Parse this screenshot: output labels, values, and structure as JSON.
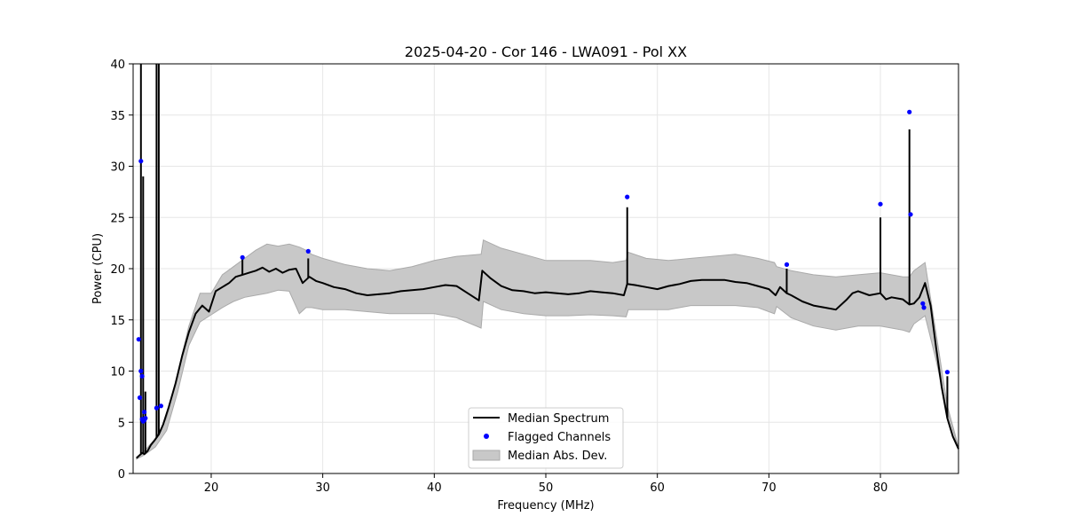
{
  "chart_data": {
    "type": "line",
    "title": "2025-04-20 - Cor 146 - LWA091 - Pol XX",
    "xlabel": "Frequency (MHz)",
    "ylabel": "Power (CPU)",
    "xlim": [
      13,
      87
    ],
    "ylim": [
      0,
      40
    ],
    "xticks": [
      20,
      30,
      40,
      50,
      60,
      70,
      80
    ],
    "yticks": [
      0,
      5,
      10,
      15,
      20,
      25,
      30,
      35,
      40
    ],
    "grid": true,
    "legend_position": "bottom-center",
    "series": [
      {
        "name": "Median Spectrum",
        "kind": "line",
        "color": "#000000",
        "x": [
          13.3,
          13.6,
          13.8,
          14.0,
          14.3,
          14.6,
          14.9,
          15.3,
          15.7,
          16.2,
          16.8,
          17.4,
          18.0,
          18.6,
          19.2,
          19.8,
          20.4,
          21.0,
          21.6,
          22.2,
          22.8,
          23.4,
          24.0,
          24.6,
          25.2,
          25.8,
          26.4,
          27.0,
          27.6,
          28.2,
          28.8,
          29.4,
          30.0,
          31.0,
          32.0,
          33.0,
          34.0,
          35.0,
          36.0,
          37.0,
          38.0,
          39.0,
          40.0,
          41.0,
          42.0,
          43.0,
          44.0,
          44.3,
          45.0,
          46.0,
          47.0,
          48.0,
          49.0,
          50.0,
          51.0,
          52.0,
          53.0,
          54.0,
          55.0,
          56.0,
          57.0,
          57.3,
          58.0,
          59.0,
          60.0,
          61.0,
          62.0,
          63.0,
          64.0,
          65.0,
          66.0,
          67.0,
          68.0,
          69.0,
          70.0,
          70.6,
          71.0,
          71.6,
          72.0,
          73.0,
          74.0,
          75.0,
          76.0,
          77.0,
          77.5,
          78.0,
          79.0,
          80.0,
          80.5,
          81.0,
          82.0,
          82.6,
          83.0,
          83.5,
          84.0,
          84.5,
          85.0,
          85.5,
          86.0,
          86.5,
          87.0
        ],
        "y": [
          1.5,
          1.8,
          2.0,
          1.9,
          2.2,
          2.8,
          3.2,
          3.8,
          4.8,
          6.5,
          8.8,
          11.5,
          13.8,
          15.6,
          16.4,
          15.8,
          17.8,
          18.2,
          18.6,
          19.2,
          19.4,
          19.6,
          19.8,
          20.1,
          19.7,
          20.0,
          19.6,
          19.9,
          20.0,
          18.6,
          19.2,
          18.8,
          18.6,
          18.2,
          18.0,
          17.6,
          17.4,
          17.5,
          17.6,
          17.8,
          17.9,
          18.0,
          18.2,
          18.4,
          18.3,
          17.6,
          16.9,
          19.8,
          19.1,
          18.3,
          17.9,
          17.8,
          17.6,
          17.7,
          17.6,
          17.5,
          17.6,
          17.8,
          17.7,
          17.6,
          17.4,
          18.5,
          18.4,
          18.2,
          18.0,
          18.3,
          18.5,
          18.8,
          18.9,
          18.9,
          18.9,
          18.7,
          18.6,
          18.3,
          18.0,
          17.4,
          18.2,
          17.6,
          17.4,
          16.8,
          16.4,
          16.2,
          16.0,
          17.0,
          17.6,
          17.8,
          17.4,
          17.6,
          17.0,
          17.2,
          17.0,
          16.5,
          16.6,
          17.2,
          18.6,
          16.4,
          12.2,
          8.4,
          5.4,
          3.6,
          2.4
        ]
      },
      {
        "name": "Flagged Channels",
        "kind": "scatter",
        "color": "#0000ff",
        "x": [
          13.5,
          13.6,
          13.7,
          13.7,
          13.8,
          13.8,
          13.9,
          14.0,
          14.0,
          14.1,
          15.1,
          15.5,
          22.8,
          28.7,
          57.3,
          71.6,
          80.0,
          82.6,
          82.7,
          83.8,
          83.9,
          86.0
        ],
        "y": [
          13.1,
          7.4,
          10.0,
          30.5,
          5.3,
          9.5,
          5.1,
          6.0,
          5.2,
          5.4,
          6.4,
          6.6,
          21.1,
          21.7,
          27.0,
          20.4,
          26.3,
          35.3,
          25.3,
          16.6,
          16.2,
          9.9
        ]
      },
      {
        "name": "Median Abs. Dev.",
        "kind": "band",
        "color": "#c8c8c8",
        "edge_color": "#aaaaaa",
        "x": [
          13.3,
          14.0,
          15.0,
          16.0,
          17.0,
          18.0,
          19.0,
          20.0,
          21.0,
          22.0,
          23.0,
          24.0,
          25.0,
          26.0,
          27.0,
          27.9,
          28.5,
          29.0,
          30.0,
          32.0,
          34.0,
          36.0,
          38.0,
          40.0,
          42.0,
          44.2,
          44.4,
          46.0,
          48.0,
          50.0,
          52.0,
          54.0,
          56.0,
          57.2,
          57.4,
          59.0,
          61.0,
          63.0,
          65.0,
          67.0,
          69.0,
          70.5,
          70.7,
          72.0,
          74.0,
          76.0,
          78.0,
          80.0,
          82.0,
          82.6,
          83.0,
          84.0,
          85.0,
          86.0,
          87.0
        ],
        "lower": [
          1.4,
          1.8,
          2.6,
          4.2,
          8.0,
          12.5,
          14.8,
          15.5,
          16.2,
          16.8,
          17.2,
          17.4,
          17.6,
          17.9,
          17.8,
          15.6,
          16.2,
          16.2,
          16.0,
          16.0,
          15.8,
          15.6,
          15.6,
          15.6,
          15.2,
          14.2,
          16.8,
          16.0,
          15.6,
          15.4,
          15.4,
          15.5,
          15.4,
          15.3,
          16.0,
          16.0,
          16.0,
          16.4,
          16.4,
          16.4,
          16.2,
          15.6,
          16.3,
          15.2,
          14.4,
          14.0,
          14.4,
          14.4,
          14.0,
          13.8,
          14.6,
          15.4,
          11.0,
          6.0,
          2.4
        ],
        "upper": [
          1.6,
          2.2,
          3.4,
          5.4,
          9.8,
          14.4,
          17.6,
          17.6,
          19.4,
          20.2,
          21.0,
          21.8,
          22.4,
          22.2,
          22.4,
          22.1,
          21.8,
          21.4,
          21.0,
          20.4,
          20.0,
          19.8,
          20.2,
          20.8,
          21.2,
          21.4,
          22.8,
          22.0,
          21.4,
          20.8,
          20.8,
          20.8,
          20.6,
          20.8,
          21.6,
          21.0,
          20.8,
          21.0,
          21.2,
          21.4,
          21.0,
          20.6,
          20.2,
          19.8,
          19.4,
          19.2,
          19.4,
          19.6,
          19.2,
          19.2,
          19.8,
          20.6,
          13.6,
          6.6,
          2.6
        ]
      }
    ],
    "spikes": [
      {
        "x": 13.7,
        "y": 40.0
      },
      {
        "x": 13.9,
        "y": 29.0
      },
      {
        "x": 14.1,
        "y": 8.0
      },
      {
        "x": 15.1,
        "y": 40.0
      },
      {
        "x": 15.3,
        "y": 40.0
      },
      {
        "x": 22.8,
        "y": 21.0
      },
      {
        "x": 28.7,
        "y": 21.0
      },
      {
        "x": 57.3,
        "y": 26.0
      },
      {
        "x": 71.6,
        "y": 20.0
      },
      {
        "x": 80.0,
        "y": 25.0
      },
      {
        "x": 82.6,
        "y": 33.6
      },
      {
        "x": 86.0,
        "y": 9.5
      }
    ]
  }
}
